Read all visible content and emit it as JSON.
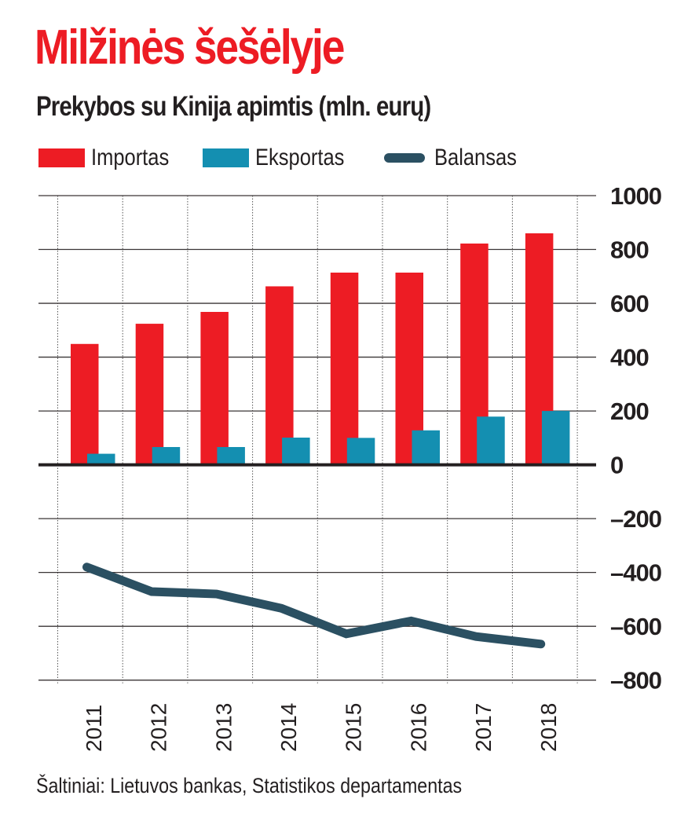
{
  "chart_data": {
    "type": "bar",
    "title": "Milžinės šešėlyje",
    "subtitle": "Prekybos su Kinija apimtis (mln. eurų)",
    "xlabel": "",
    "ylabel": "",
    "categories": [
      "2011",
      "2012",
      "2013",
      "2014",
      "2015",
      "2016",
      "2017",
      "2018"
    ],
    "series": [
      {
        "name": "Importas",
        "kind": "bar",
        "color": "#ed1c24",
        "values": [
          449,
          524,
          568,
          663,
          714,
          714,
          822,
          860
        ]
      },
      {
        "name": "Eksportas",
        "kind": "bar",
        "color": "#148fb1",
        "values": [
          41,
          66,
          66,
          101,
          100,
          128,
          179,
          200
        ]
      },
      {
        "name": "Balansas",
        "kind": "line",
        "color": "#2b5062",
        "values": [
          -380,
          -471,
          -480,
          -533,
          -628,
          -580,
          -638,
          -666
        ]
      }
    ],
    "ylim": [
      -800,
      1000
    ],
    "yticks": [
      "1000",
      "800",
      "600",
      "400",
      "200",
      "0",
      "–200",
      "–400",
      "–600",
      "–800"
    ],
    "ytick_values": [
      1000,
      800,
      600,
      400,
      200,
      0,
      -200,
      -400,
      -600,
      -800
    ],
    "grid": true,
    "y_axis_side": "right",
    "legend_position": "top-left",
    "source": "Šaltiniai: Lietuvos bankas, Statistikos departamentas"
  },
  "legend": {
    "items": [
      {
        "label": "Importas",
        "color": "#ed1c24",
        "shape": "bar"
      },
      {
        "label": "Eksportas",
        "color": "#148fb1",
        "shape": "bar"
      },
      {
        "label": "Balansas",
        "color": "#2b5062",
        "shape": "line"
      }
    ]
  }
}
